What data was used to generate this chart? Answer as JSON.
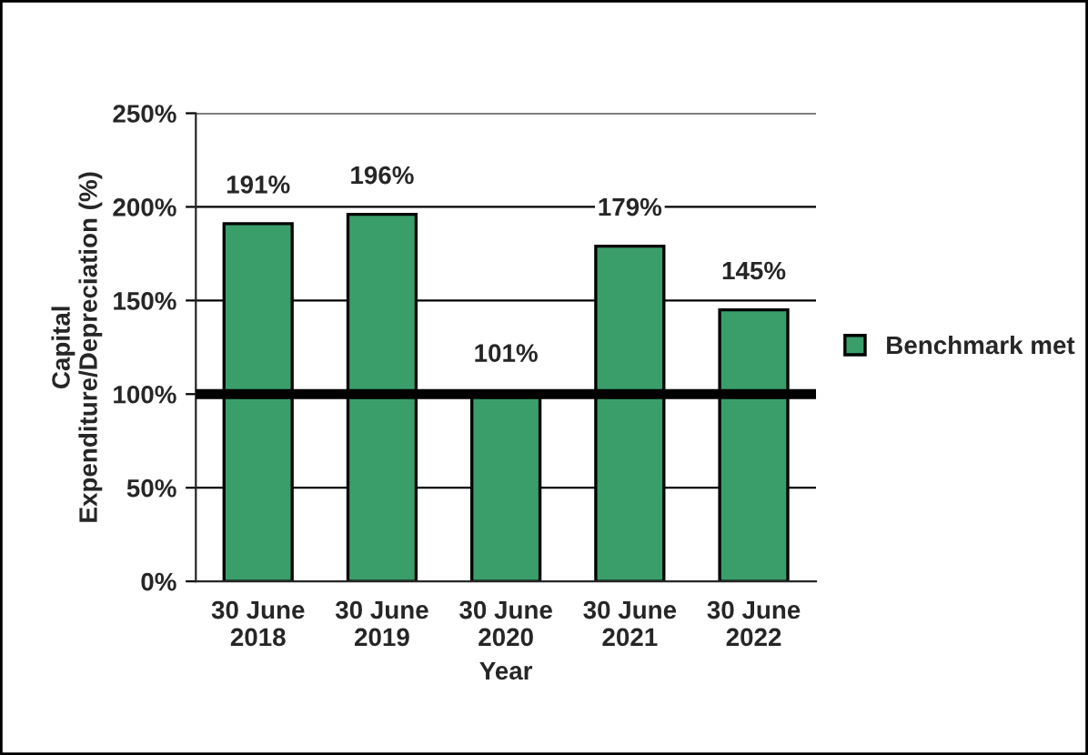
{
  "chart_data": {
    "type": "bar",
    "xlabel": "Year",
    "ylabel": "Capital\nExpenditure/Depreciation (%)",
    "categories": [
      "30 June\n2018",
      "30 June\n2019",
      "30 June\n2020",
      "30 June\n2021",
      "30 June\n2022"
    ],
    "series": [
      {
        "name": "Benchmark met",
        "color": "#3a9e6b",
        "values": [
          191,
          196,
          101,
          179,
          145
        ],
        "value_labels": [
          "191%",
          "196%",
          "101%",
          "179%",
          "145%"
        ]
      }
    ],
    "ylim": [
      0,
      250
    ],
    "yticks": [
      {
        "value": 0,
        "label": "0%"
      },
      {
        "value": 50,
        "label": "50%"
      },
      {
        "value": 100,
        "label": "100%"
      },
      {
        "value": 150,
        "label": "150%"
      },
      {
        "value": 200,
        "label": "200%"
      },
      {
        "value": 250,
        "label": "250%"
      }
    ],
    "grid": "y",
    "legend": "right",
    "ref_lines": [
      {
        "axis": "y",
        "value": 100,
        "color": "#000000"
      }
    ]
  }
}
